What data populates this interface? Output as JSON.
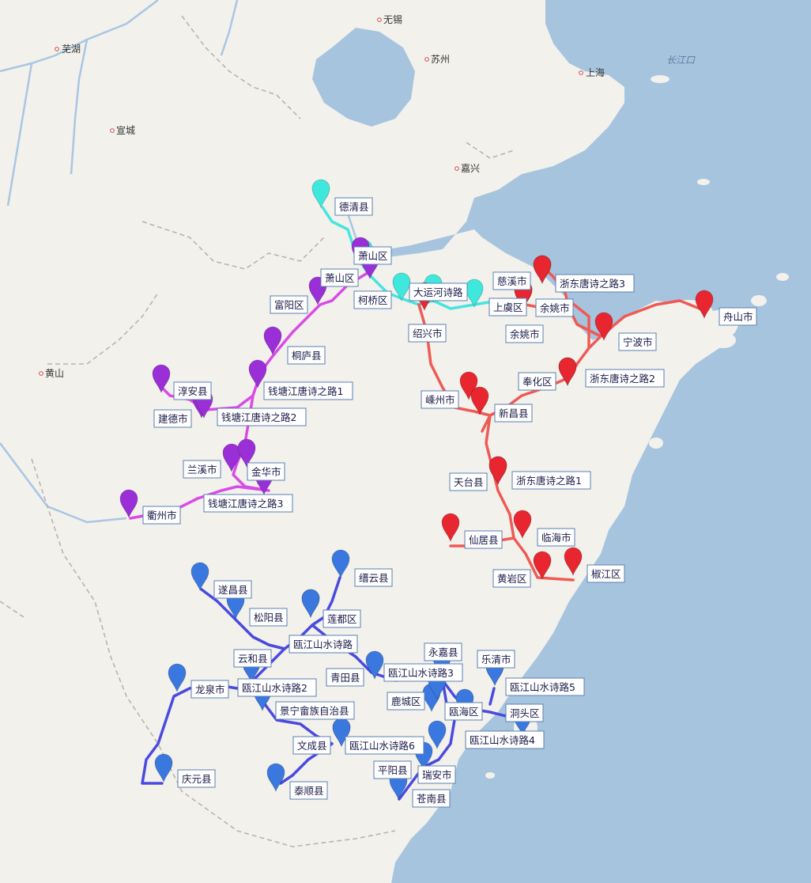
{
  "colors": {
    "sea": "#a7c4de",
    "land": "#f2f1ec",
    "river": "#a9c6e3",
    "tea": "#3ee8dd",
    "red": "#e8262f",
    "purple": "#9a2fd8",
    "blue": "#3a78e0",
    "route_red": "#ef5a55",
    "route_purple": "#d94be6",
    "route_blue": "#4a4ae0",
    "route_teal": "#47e5df"
  },
  "base_labels": [
    {
      "key": "wuhu",
      "text": "芜湖"
    },
    {
      "key": "wuxi",
      "text": "无锡"
    },
    {
      "key": "suzhou",
      "text": "苏州"
    },
    {
      "key": "shanghai",
      "text": "上海"
    },
    {
      "key": "xuancheng",
      "text": "宣城"
    },
    {
      "key": "jiaxing",
      "text": "嘉兴"
    },
    {
      "key": "huangshan",
      "text": "黄山"
    },
    {
      "key": "changjiangkou",
      "text": "长江口"
    }
  ],
  "markers": [
    {
      "key": "deqing",
      "color": "teal",
      "label": "德清县",
      "icon": "map-pin-icon"
    },
    {
      "key": "canal1",
      "color": "teal",
      "label": "大运河诗路",
      "icon": "map-pin-icon"
    },
    {
      "key": "canal2",
      "color": "teal",
      "label": "",
      "icon": "map-pin-icon"
    },
    {
      "key": "canal3",
      "color": "teal",
      "label": "",
      "icon": "map-pin-icon"
    },
    {
      "key": "xiaoshan_t",
      "color": "teal",
      "label": "萧山区",
      "icon": "map-pin-icon"
    },
    {
      "key": "xiaoshan_p",
      "color": "purple",
      "label": "萧山区",
      "icon": "map-pin-icon"
    },
    {
      "key": "keqiao",
      "color": "purple",
      "label": "柯桥区",
      "icon": "map-pin-icon"
    },
    {
      "key": "fuyang",
      "color": "purple",
      "label": "富阳区",
      "icon": "map-pin-icon"
    },
    {
      "key": "tonglu",
      "color": "purple",
      "label": "桐庐县",
      "icon": "map-pin-icon"
    },
    {
      "key": "qtj1",
      "color": "purple",
      "label": "钱塘江唐诗之路1",
      "icon": "map-pin-icon"
    },
    {
      "key": "chunan",
      "color": "purple",
      "label": "淳安县",
      "icon": "map-pin-icon"
    },
    {
      "key": "jiande",
      "color": "purple",
      "label": "建德市",
      "icon": "map-pin-icon"
    },
    {
      "key": "qtj2",
      "color": "purple",
      "label": "钱塘江唐诗之路2",
      "icon": "map-pin-icon"
    },
    {
      "key": "lanxi",
      "color": "purple",
      "label": "兰溪市",
      "icon": "map-pin-icon"
    },
    {
      "key": "jinhua",
      "color": "purple",
      "label": "金华市",
      "icon": "map-pin-icon"
    },
    {
      "key": "qtj3",
      "color": "purple",
      "label": "钱塘江唐诗之路3",
      "icon": "map-pin-icon"
    },
    {
      "key": "quzhou",
      "color": "purple",
      "label": "衢州市",
      "icon": "map-pin-icon"
    },
    {
      "key": "shaoxing",
      "color": "red",
      "label": "绍兴市",
      "icon": "map-pin-icon"
    },
    {
      "key": "cixi",
      "color": "red",
      "label": "慈溪市",
      "icon": "map-pin-icon"
    },
    {
      "key": "zd3",
      "color": "red",
      "label": "浙东唐诗之路3",
      "icon": "map-pin-icon"
    },
    {
      "key": "shangyu",
      "color": "red",
      "label": "上虞区",
      "icon": "map-pin-icon"
    },
    {
      "key": "yuyao1",
      "color": "red",
      "label": "余姚市",
      "icon": "map-pin-icon"
    },
    {
      "key": "yuyao2",
      "color": "red",
      "label": "余姚市",
      "icon": "map-pin-icon"
    },
    {
      "key": "zhoushan",
      "color": "red",
      "label": "舟山市",
      "icon": "map-pin-icon"
    },
    {
      "key": "ningbo",
      "color": "red",
      "label": "宁波市",
      "icon": "map-pin-icon"
    },
    {
      "key": "fenghua",
      "color": "red",
      "label": "奉化区",
      "icon": "map-pin-icon"
    },
    {
      "key": "zd2",
      "color": "red",
      "label": "浙东唐诗之路2",
      "icon": "map-pin-icon"
    },
    {
      "key": "shengzhou",
      "color": "red",
      "label": "嵊州市",
      "icon": "map-pin-icon"
    },
    {
      "key": "xinchang",
      "color": "red",
      "label": "新昌县",
      "icon": "map-pin-icon"
    },
    {
      "key": "tiantai",
      "color": "red",
      "label": "天台县",
      "icon": "map-pin-icon"
    },
    {
      "key": "zd1",
      "color": "red",
      "label": "浙东唐诗之路1",
      "icon": "map-pin-icon"
    },
    {
      "key": "xianju",
      "color": "red",
      "label": "仙居县",
      "icon": "map-pin-icon"
    },
    {
      "key": "linhai",
      "color": "red",
      "label": "临海市",
      "icon": "map-pin-icon"
    },
    {
      "key": "huangyan",
      "color": "red",
      "label": "黄岩区",
      "icon": "map-pin-icon"
    },
    {
      "key": "jiaojiang",
      "color": "red",
      "label": "椒江区",
      "icon": "map-pin-icon"
    },
    {
      "key": "jinyun",
      "color": "blue",
      "label": "缙云县",
      "icon": "map-pin-icon"
    },
    {
      "key": "suichang",
      "color": "blue",
      "label": "遂昌县",
      "icon": "map-pin-icon"
    },
    {
      "key": "songyang",
      "color": "blue",
      "label": "松阳县",
      "icon": "map-pin-icon"
    },
    {
      "key": "liandu",
      "color": "blue",
      "label": "莲都区",
      "icon": "map-pin-icon"
    },
    {
      "key": "ojs",
      "color": "blue",
      "label": "瓯江山水诗路",
      "icon": "map-pin-icon"
    },
    {
      "key": "yunhe",
      "color": "blue",
      "label": "云和县",
      "icon": "map-pin-icon"
    },
    {
      "key": "qingtian",
      "color": "blue",
      "label": "青田县",
      "icon": "map-pin-icon"
    },
    {
      "key": "ojs3",
      "color": "blue",
      "label": "瓯江山水诗路3",
      "icon": "map-pin-icon"
    },
    {
      "key": "yongjia",
      "color": "blue",
      "label": "永嘉县",
      "icon": "map-pin-icon"
    },
    {
      "key": "yueqing",
      "color": "blue",
      "label": "乐清市",
      "icon": "map-pin-icon"
    },
    {
      "key": "ojs5",
      "color": "blue",
      "label": "瓯江山水诗路5",
      "icon": "map-pin-icon"
    },
    {
      "key": "longquan",
      "color": "blue",
      "label": "龙泉市",
      "icon": "map-pin-icon"
    },
    {
      "key": "ojs2",
      "color": "blue",
      "label": "瓯江山水诗路2",
      "icon": "map-pin-icon"
    },
    {
      "key": "lucheng",
      "color": "blue",
      "label": "鹿城区",
      "icon": "map-pin-icon"
    },
    {
      "key": "ouhai",
      "color": "blue",
      "label": "瓯海区",
      "icon": "map-pin-icon"
    },
    {
      "key": "jingning",
      "color": "blue",
      "label": "景宁畲族自治县",
      "icon": "map-pin-icon"
    },
    {
      "key": "dongtou",
      "color": "blue",
      "label": "洞头区",
      "icon": "map-pin-icon"
    },
    {
      "key": "ojs4",
      "color": "blue",
      "label": "瓯江山水诗路4",
      "icon": "map-pin-icon"
    },
    {
      "key": "wencheng",
      "color": "blue",
      "label": "文成县",
      "icon": "map-pin-icon"
    },
    {
      "key": "ojs6",
      "color": "blue",
      "label": "瓯江山水诗路6",
      "icon": "map-pin-icon"
    },
    {
      "key": "pingyang",
      "color": "blue",
      "label": "平阳县",
      "icon": "map-pin-icon"
    },
    {
      "key": "ruian",
      "color": "blue",
      "label": "瑞安市",
      "icon": "map-pin-icon"
    },
    {
      "key": "qingyuan",
      "color": "blue",
      "label": "庆元县",
      "icon": "map-pin-icon"
    },
    {
      "key": "taishun",
      "color": "blue",
      "label": "泰顺县",
      "icon": "map-pin-icon"
    },
    {
      "key": "cangnan",
      "color": "blue",
      "label": "苍南县",
      "icon": "map-pin-icon"
    }
  ]
}
